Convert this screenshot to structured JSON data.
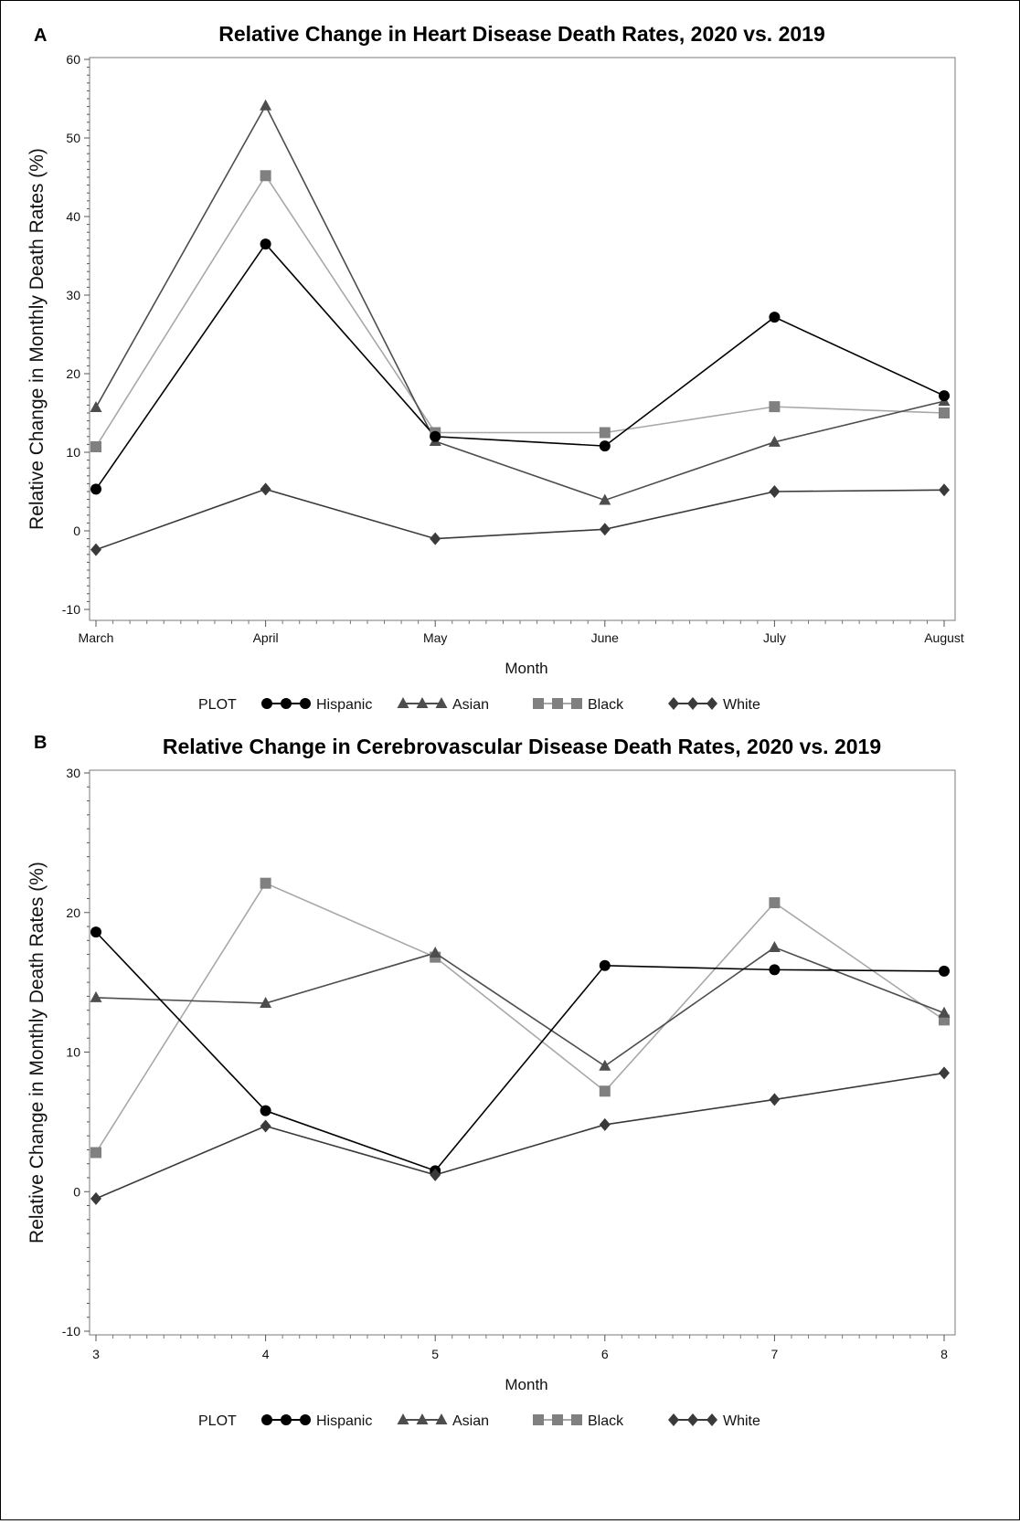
{
  "legend_symbols": {
    "Hispanic": "circle",
    "Asian": "triangle",
    "Black": "square",
    "White": "diamond"
  },
  "colors": {
    "Hispanic": "#000000",
    "Asian": "#4d4d4d",
    "Black": "#808080",
    "White": "#3a3a3a",
    "Black_line": "#a8a8a8"
  },
  "chart_data": [
    {
      "panel_label": "A",
      "type": "line",
      "title": "Relative Change in Heart Disease Death Rates, 2020 vs. 2019",
      "xlabel": "Month",
      "ylabel": "Relative Change in Monthly Death Rates (%)",
      "categories": [
        "March",
        "April",
        "May",
        "June",
        "July",
        "August"
      ],
      "yticks": [
        "60",
        "50",
        "40",
        "30",
        "20",
        "10",
        "0",
        "-10"
      ],
      "ylim": [
        -10,
        60
      ],
      "legend_title": "PLOT",
      "legend_position": "bottom",
      "grid": false,
      "series": [
        {
          "name": "Hispanic",
          "values": [
            5.3,
            36.5,
            12.0,
            10.8,
            27.2,
            17.2
          ]
        },
        {
          "name": "Asian",
          "values": [
            15.7,
            54.1,
            11.4,
            3.9,
            11.3,
            16.5
          ]
        },
        {
          "name": "Black",
          "values": [
            10.7,
            45.2,
            12.5,
            12.5,
            15.8,
            15.0
          ]
        },
        {
          "name": "White",
          "values": [
            -2.4,
            5.3,
            -1.0,
            0.2,
            5.0,
            5.2
          ]
        }
      ]
    },
    {
      "panel_label": "B",
      "type": "line",
      "title": "Relative Change in Cerebrovascular Disease Death Rates, 2020 vs. 2019",
      "xlabel": "Month",
      "ylabel": "Relative Change in Monthly Death Rates (%)",
      "categories": [
        "3",
        "4",
        "5",
        "6",
        "7",
        "8"
      ],
      "yticks": [
        "30",
        "20",
        "10",
        "0",
        "-10"
      ],
      "ylim": [
        -10,
        30
      ],
      "legend_title": "PLOT",
      "legend_position": "bottom",
      "grid": false,
      "series": [
        {
          "name": "Hispanic",
          "values": [
            18.6,
            5.8,
            1.5,
            16.2,
            15.9,
            15.8
          ]
        },
        {
          "name": "Asian",
          "values": [
            13.9,
            13.5,
            17.1,
            9.0,
            17.5,
            12.8
          ]
        },
        {
          "name": "Black",
          "values": [
            2.8,
            22.1,
            16.8,
            7.2,
            20.7,
            12.3
          ]
        },
        {
          "name": "White",
          "values": [
            -0.5,
            4.7,
            1.2,
            4.8,
            6.6,
            8.5
          ]
        }
      ]
    }
  ]
}
